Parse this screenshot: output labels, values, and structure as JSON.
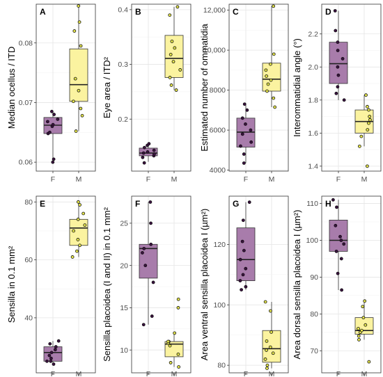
{
  "colors": {
    "F": "#a87cab",
    "M": "#fbf3a0",
    "F_point": "#3b1040",
    "M_point": "#e6e64c"
  },
  "chart_data": [
    {
      "type": "box",
      "panel": "A",
      "ylabel": "Median ocellus / ITD",
      "categories": [
        "F",
        "M"
      ],
      "ylim": [
        0.0585,
        0.0865
      ],
      "yticks": [
        0.06,
        0.07,
        0.08
      ],
      "yticklabels": [
        "0.06",
        "0.07",
        "0.08"
      ],
      "boxes": [
        {
          "name": "F",
          "whislo": 0.0605,
          "q1": 0.0648,
          "med": 0.0662,
          "q3": 0.0675,
          "whishi": 0.0685
        },
        {
          "name": "M",
          "whislo": 0.0652,
          "q1": 0.0702,
          "med": 0.073,
          "q3": 0.079,
          "whishi": 0.0862
        }
      ],
      "points": {
        "F": [
          0.06,
          0.0605,
          0.0648,
          0.065,
          0.066,
          0.0663,
          0.0668,
          0.0672,
          0.068,
          0.0685
        ],
        "M": [
          0.0652,
          0.0678,
          0.069,
          0.0702,
          0.072,
          0.074,
          0.0795,
          0.082,
          0.0835,
          0.0862
        ]
      }
    },
    {
      "type": "box",
      "panel": "B",
      "ylabel": "Eye area / ITD²",
      "categories": [
        "F",
        "M"
      ],
      "ylim": [
        0.105,
        0.41
      ],
      "yticks": [
        0.2,
        0.3,
        0.4
      ],
      "yticklabels": [
        "0.2",
        "0.3",
        "0.4"
      ],
      "boxes": [
        {
          "name": "F",
          "whislo": 0.122,
          "q1": 0.133,
          "med": 0.138,
          "q3": 0.147,
          "whishi": 0.155
        },
        {
          "name": "M",
          "whislo": 0.253,
          "q1": 0.276,
          "med": 0.311,
          "q3": 0.353,
          "whishi": 0.405
        }
      ],
      "points": {
        "F": [
          0.12,
          0.13,
          0.133,
          0.136,
          0.138,
          0.14,
          0.143,
          0.148,
          0.152,
          0.155
        ],
        "M": [
          0.253,
          0.262,
          0.276,
          0.29,
          0.305,
          0.318,
          0.33,
          0.342,
          0.39,
          0.405
        ]
      }
    },
    {
      "type": "box",
      "panel": "C",
      "ylabel": "Estimated number of ommatidia",
      "categories": [
        "F",
        "M"
      ],
      "ylim": [
        3950,
        12300
      ],
      "yticks": [
        4000,
        6000,
        8000,
        10000,
        12000
      ],
      "yticklabels": [
        "4000",
        "6000",
        "8000",
        "10,000",
        "12,000"
      ],
      "boxes": [
        {
          "name": "F",
          "whislo": 4350,
          "q1": 5150,
          "med": 5900,
          "q3": 6600,
          "whishi": 7300
        },
        {
          "name": "M",
          "whislo": 7150,
          "q1": 7950,
          "med": 8550,
          "q3": 9350,
          "whishi": 12200
        }
      ],
      "points": {
        "F": [
          4350,
          4800,
          5200,
          5400,
          5800,
          6000,
          6300,
          6600,
          7000,
          7300
        ],
        "M": [
          7150,
          7600,
          7950,
          8300,
          8500,
          8700,
          9000,
          9300,
          9800,
          12200
        ]
      }
    },
    {
      "type": "box",
      "panel": "D",
      "ylabel": "Interommatidial angle (°)",
      "categories": [
        "F",
        "M"
      ],
      "ylim": [
        1.37,
        2.38
      ],
      "yticks": [
        1.4,
        1.6,
        1.8,
        2.0,
        2.2
      ],
      "yticklabels": [
        "1.4",
        "1.6",
        "1.8",
        "2.0",
        "2.2"
      ],
      "boxes": [
        {
          "name": "F",
          "whislo": 1.8,
          "q1": 1.9,
          "med": 2.02,
          "q3": 2.15,
          "whishi": 2.34
        },
        {
          "name": "M",
          "whislo": 1.52,
          "q1": 1.6,
          "med": 1.67,
          "q3": 1.74,
          "whishi": 1.83
        }
      ],
      "points": {
        "F": [
          1.8,
          1.84,
          1.88,
          1.95,
          2.0,
          2.05,
          2.1,
          2.15,
          2.22,
          2.34
        ],
        "M": [
          1.4,
          1.52,
          1.58,
          1.62,
          1.66,
          1.68,
          1.7,
          1.74,
          1.76,
          1.83
        ]
      }
    },
    {
      "type": "box",
      "panel": "E",
      "ylabel": "Sensilla in 0.1 mm²",
      "categories": [
        "F",
        "M"
      ],
      "ylim": [
        21,
        82
      ],
      "yticks": [
        40,
        60,
        80
      ],
      "yticklabels": [
        "40",
        "60",
        "80"
      ],
      "boxes": [
        {
          "name": "F",
          "whislo": 24,
          "q1": 25,
          "med": 28,
          "q3": 30,
          "whishi": 32
        },
        {
          "name": "M",
          "whislo": 61,
          "q1": 65,
          "med": 71,
          "q3": 74,
          "whishi": 80
        }
      ],
      "points": {
        "F": [
          24,
          25,
          25,
          26,
          27,
          28,
          29,
          30,
          31,
          32
        ],
        "M": [
          61,
          63,
          65,
          67,
          70,
          72,
          74,
          76,
          79,
          80
        ]
      }
    },
    {
      "type": "box",
      "panel": "F",
      "ylabel": "Sensilla placoidea (I and II) in 0.1 mm²",
      "categories": [
        "F",
        "M"
      ],
      "ylim": [
        7.3,
        28.2
      ],
      "yticks": [
        10,
        15,
        20,
        25
      ],
      "yticklabels": [
        "10",
        "15",
        "20",
        "25"
      ],
      "boxes": [
        {
          "name": "F",
          "whislo": 13,
          "q1": 18.5,
          "med": 22,
          "q3": 22.5,
          "whishi": 27.5
        },
        {
          "name": "M",
          "whislo": 8,
          "q1": 9.2,
          "med": 10.7,
          "q3": 11,
          "whishi": 12
        }
      ],
      "points": {
        "F": [
          13,
          14,
          18,
          20,
          21.5,
          22,
          22.5,
          25,
          27.5
        ],
        "M": [
          8,
          8.5,
          9.5,
          10.5,
          10.8,
          11,
          11,
          12,
          15,
          16
        ]
      }
    },
    {
      "type": "box",
      "panel": "G",
      "ylabel": "Area ventral sensilla placoidea I (µm²)",
      "categories": [
        "F",
        "M"
      ],
      "ylim": [
        77.5,
        136
      ],
      "yticks": [
        80,
        100,
        120
      ],
      "yticklabels": [
        "80",
        "100",
        "120"
      ],
      "boxes": [
        {
          "name": "F",
          "whislo": 105,
          "q1": 108,
          "med": 115,
          "q3": 125.5,
          "whishi": 134
        },
        {
          "name": "M",
          "whislo": 79,
          "q1": 81,
          "med": 85.5,
          "q3": 91.5,
          "whishi": 101
        }
      ],
      "points": {
        "F": [
          105,
          106,
          108,
          110,
          112,
          115,
          118,
          121,
          128,
          134
        ],
        "M": [
          79,
          80,
          82,
          84,
          85,
          86,
          88,
          91,
          98,
          101
        ]
      }
    },
    {
      "type": "box",
      "panel": "H",
      "ylabel": "Area dorsal sensilla placoidea I (µm²)",
      "categories": [
        "F",
        "M"
      ],
      "ylim": [
        64,
        112
      ],
      "yticks": [
        70,
        80,
        90,
        100,
        110
      ],
      "yticklabels": [
        "70",
        "80",
        "90",
        "100",
        "110"
      ],
      "boxes": [
        {
          "name": "F",
          "whislo": 86.5,
          "q1": 97,
          "med": 100,
          "q3": 105.5,
          "whishi": 111
        },
        {
          "name": "M",
          "whislo": 73,
          "q1": 74.5,
          "med": 75.5,
          "q3": 79,
          "whishi": 83.5
        }
      ],
      "points": {
        "F": [
          86.5,
          91,
          95,
          97,
          99,
          100,
          101,
          104,
          109,
          111
        ],
        "M": [
          67,
          73,
          74,
          75,
          75.5,
          76,
          77,
          79,
          82,
          83.5
        ]
      }
    }
  ]
}
